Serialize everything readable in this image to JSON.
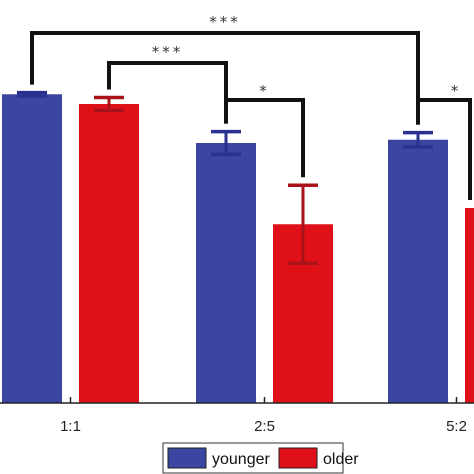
{
  "chart_data": {
    "type": "bar",
    "categories": [
      "1:1",
      "2:5",
      "5:2"
    ],
    "series": [
      {
        "name": "younger",
        "color": "#3A46A0",
        "values": [
          0.95,
          0.8,
          0.81
        ],
        "errors": [
          0.005,
          0.035,
          0.022
        ]
      },
      {
        "name": "older",
        "color": "#E01019",
        "values": [
          0.92,
          0.55,
          0.6
        ],
        "errors": [
          0.02,
          0.12,
          0.0
        ]
      }
    ],
    "ylim": [
      0,
      1.1
    ],
    "xlabel": "",
    "ylabel": "",
    "grid": false,
    "legend_position": "bottom-center",
    "significance": [
      {
        "from": {
          "category": 0,
          "series": 0
        },
        "to": {
          "category": 2,
          "series": 0
        },
        "label": "***"
      },
      {
        "from": {
          "category": 0,
          "series": 1
        },
        "to": {
          "category": 1,
          "series": 0
        },
        "label": "***"
      },
      {
        "from": {
          "category": 1,
          "series": 0
        },
        "to": {
          "category": 1,
          "series": 1
        },
        "label": "*"
      },
      {
        "from": {
          "category": 2,
          "series": 0
        },
        "to": {
          "category": 2,
          "series": 1
        },
        "label": "*"
      }
    ]
  }
}
